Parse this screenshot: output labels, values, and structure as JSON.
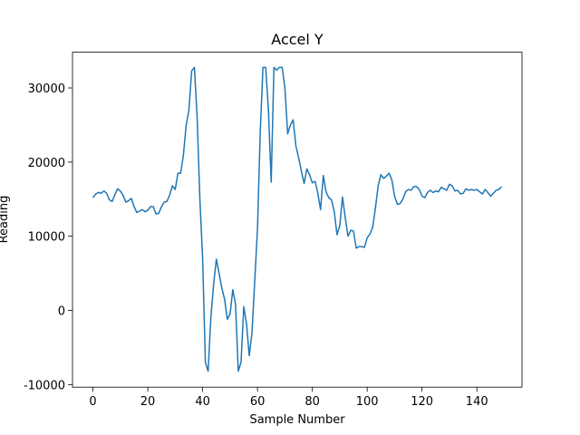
{
  "chart_data": {
    "type": "line",
    "title": "Accel Y",
    "xlabel": "Sample Number",
    "ylabel": "Reading",
    "x": [
      0,
      1,
      2,
      3,
      4,
      5,
      6,
      7,
      8,
      9,
      10,
      11,
      12,
      13,
      14,
      15,
      16,
      17,
      18,
      19,
      20,
      21,
      22,
      23,
      24,
      25,
      26,
      27,
      28,
      29,
      30,
      31,
      32,
      33,
      34,
      35,
      36,
      37,
      38,
      39,
      40,
      41,
      42,
      43,
      44,
      45,
      46,
      47,
      48,
      49,
      50,
      51,
      52,
      53,
      54,
      55,
      56,
      57,
      58,
      59,
      60,
      61,
      62,
      63,
      64,
      65,
      66,
      67,
      68,
      69,
      70,
      71,
      72,
      73,
      74,
      75,
      76,
      77,
      78,
      79,
      80,
      81,
      82,
      83,
      84,
      85,
      86,
      87,
      88,
      89,
      90,
      91,
      92,
      93,
      94,
      95,
      96,
      97,
      98,
      99,
      100,
      101,
      102,
      103,
      104,
      105,
      106,
      107,
      108,
      109,
      110,
      111,
      112,
      113,
      114,
      115,
      116,
      117,
      118,
      119,
      120,
      121,
      122,
      123,
      124,
      125,
      126,
      127,
      128,
      129,
      130,
      131,
      132,
      133,
      134,
      135,
      136,
      137,
      138,
      139,
      140,
      141,
      142,
      143,
      144,
      145,
      146,
      147,
      148,
      149
    ],
    "values": [
      15200,
      15700,
      15900,
      15800,
      16100,
      15800,
      14900,
      14700,
      15600,
      16400,
      16100,
      15500,
      14600,
      14800,
      15100,
      14000,
      13200,
      13400,
      13600,
      13300,
      13500,
      14000,
      14000,
      13000,
      13100,
      14000,
      14600,
      14700,
      15600,
      16800,
      16300,
      18500,
      18500,
      21000,
      25000,
      27000,
      32300,
      32767,
      26000,
      15000,
      7000,
      -7000,
      -8200,
      -1000,
      3500,
      6900,
      5000,
      3000,
      1500,
      -1200,
      -500,
      2800,
      800,
      -8200,
      -7000,
      500,
      -1800,
      -6100,
      -3000,
      4000,
      11000,
      24000,
      32767,
      32767,
      27000,
      17300,
      32767,
      32400,
      32767,
      32767,
      30000,
      23800,
      25000,
      25700,
      22200,
      20600,
      18800,
      17100,
      19100,
      18300,
      17200,
      17400,
      15800,
      13600,
      18200,
      16000,
      15200,
      14900,
      13300,
      10200,
      11400,
      15300,
      12500,
      10000,
      10800,
      10700,
      8400,
      8600,
      8600,
      8500,
      9800,
      10300,
      11200,
      13800,
      16800,
      18300,
      17800,
      18100,
      18500,
      17600,
      15400,
      14300,
      14400,
      15000,
      16000,
      16300,
      16200,
      16700,
      16700,
      16300,
      15400,
      15200,
      15900,
      16200,
      15900,
      16100,
      16000,
      16600,
      16400,
      16200,
      17000,
      16800,
      16100,
      16200,
      15700,
      15800,
      16400,
      16200,
      16300,
      16200,
      16300,
      16000,
      15700,
      16300,
      15900,
      15400,
      15800,
      16200,
      16300,
      16700
    ],
    "color": "#1f77b4",
    "xlim": [
      -7.45,
      156.45
    ],
    "xticks": [
      0,
      20,
      40,
      60,
      80,
      100,
      120,
      140
    ],
    "ylim": [
      -10350,
      34820
    ],
    "yticks": [
      -10000,
      0,
      10000,
      20000,
      30000
    ],
    "grid": false
  }
}
